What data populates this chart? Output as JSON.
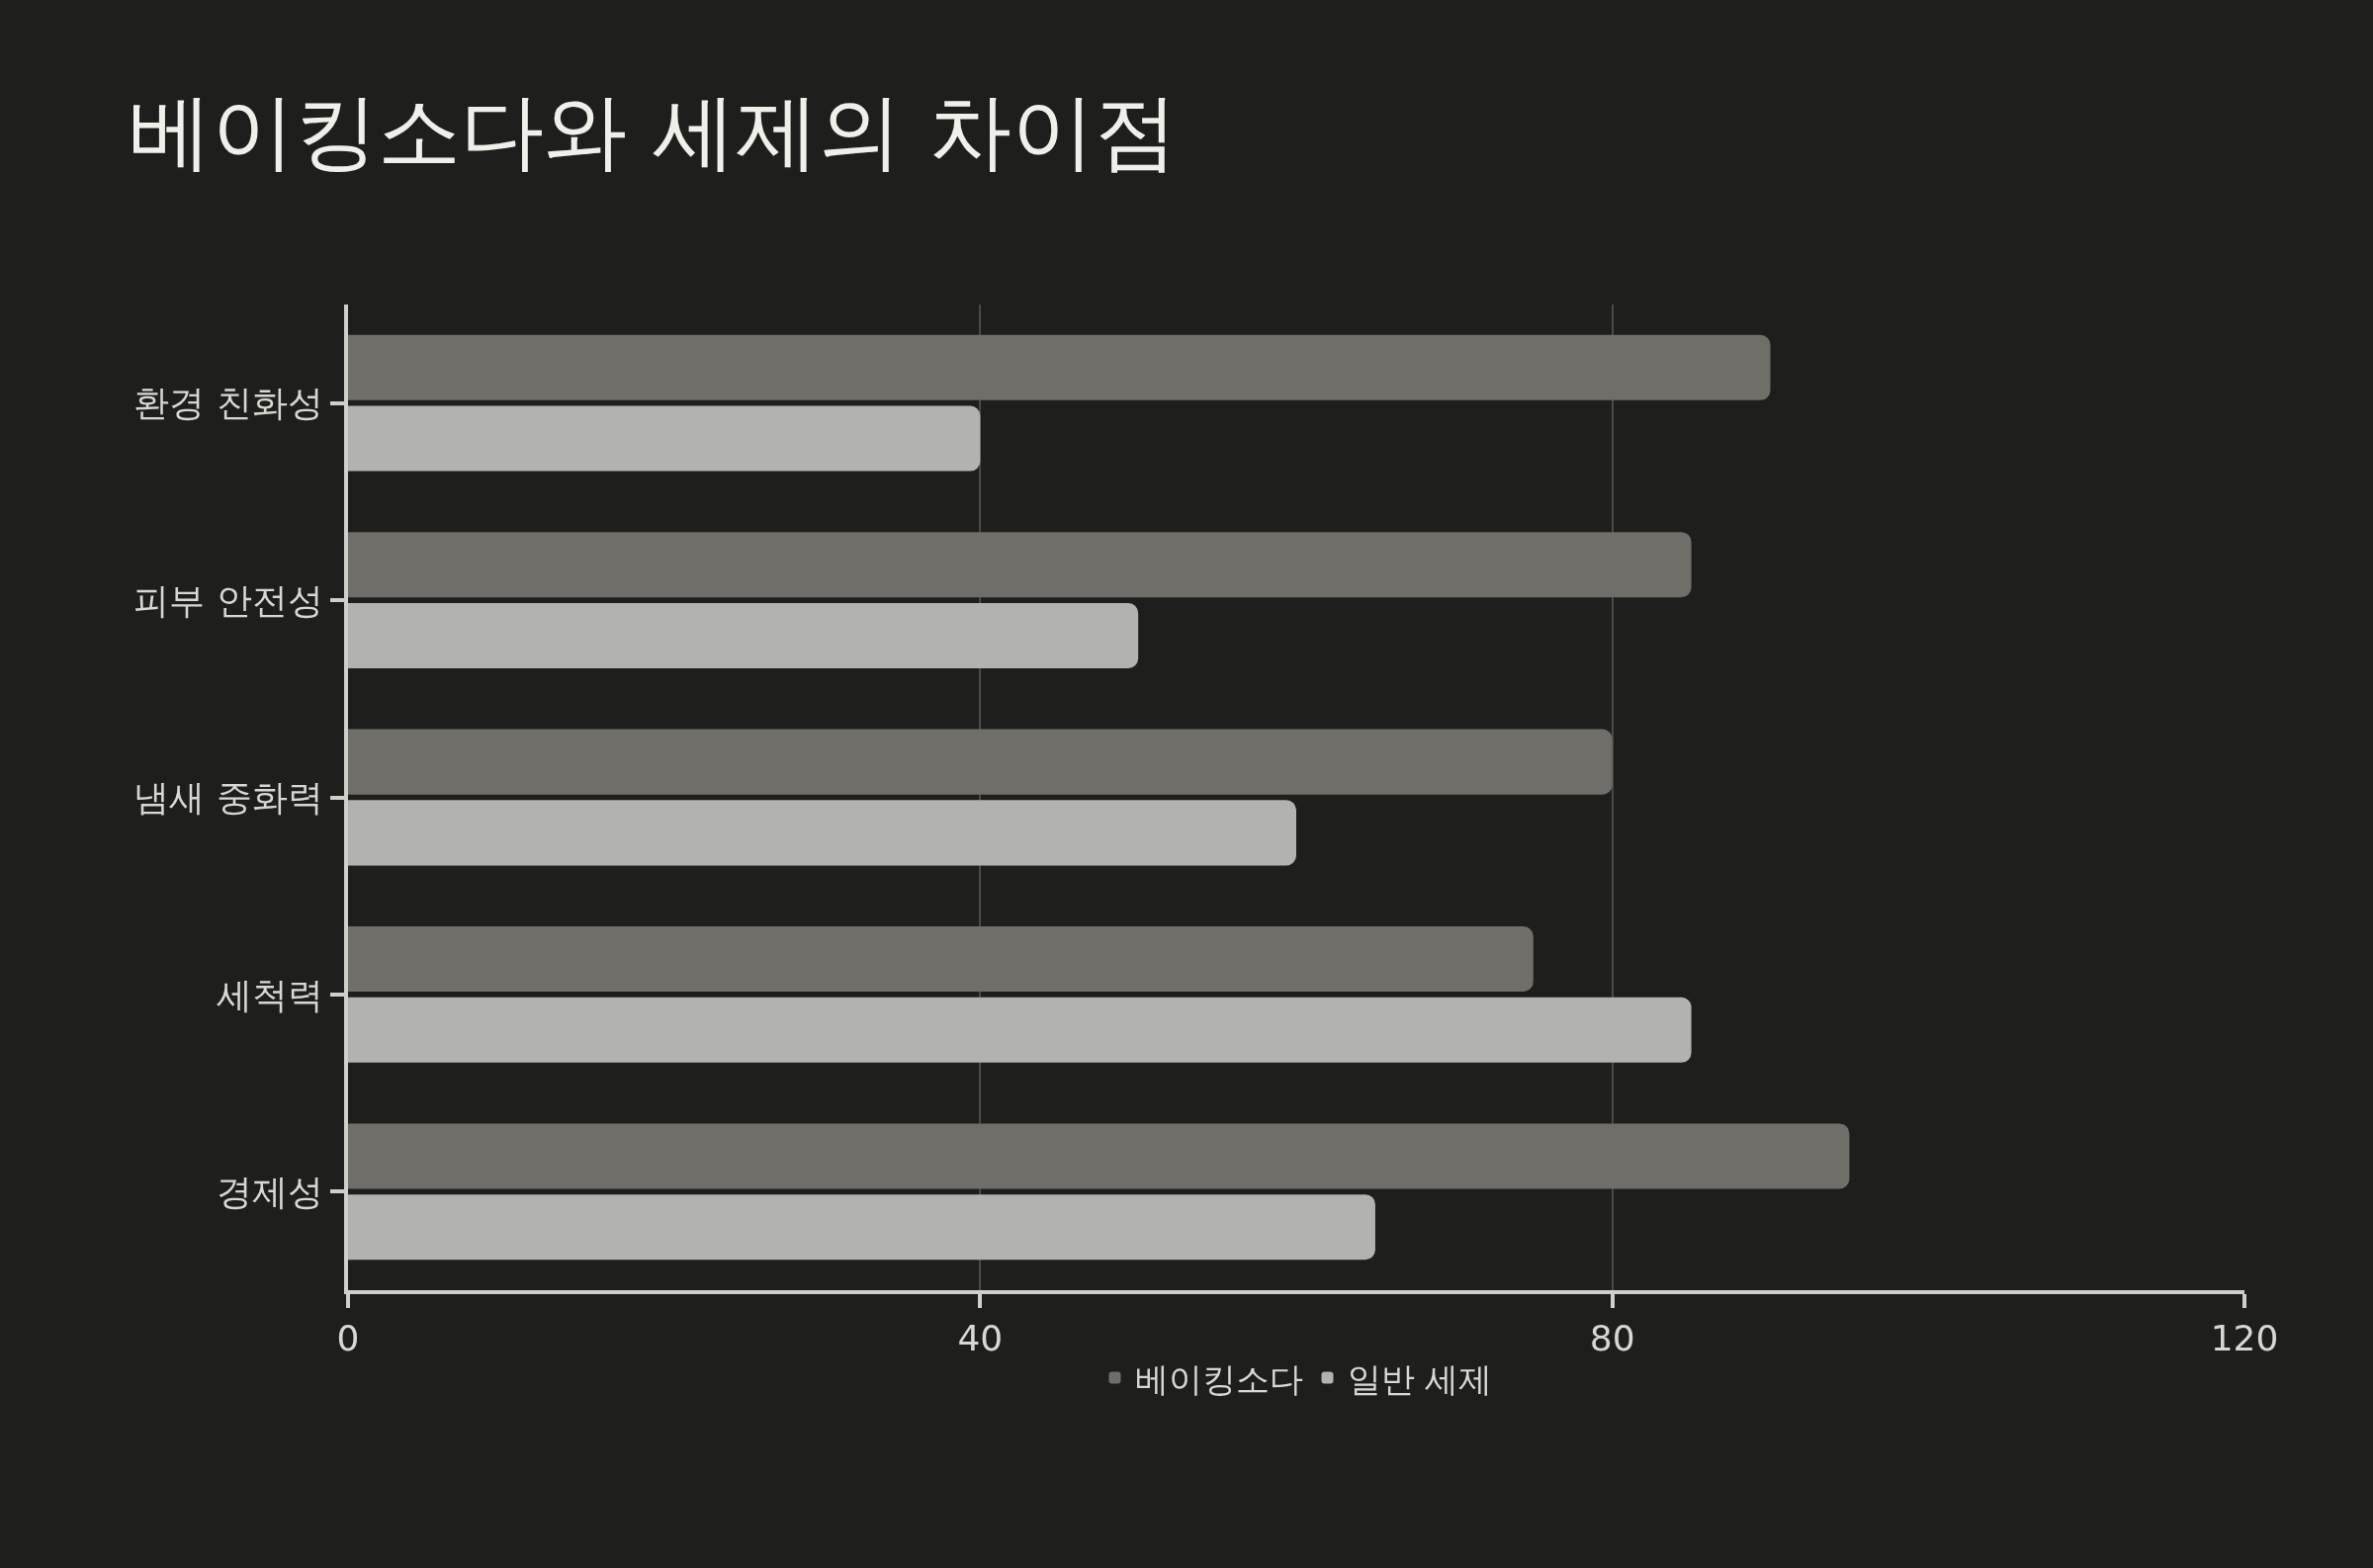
{
  "chart_data": {
    "type": "bar",
    "orientation": "horizontal",
    "title": "베이킹소다와 세제의 차이점",
    "categories": [
      "환경 친화성",
      "피부 안전성",
      "냄새 중화력",
      "세척력",
      "경제성"
    ],
    "series": [
      {
        "name": "베이킹소다",
        "color": "#6f6e69",
        "values": [
          90,
          85,
          80,
          75,
          95
        ]
      },
      {
        "name": "일반 세제",
        "color": "#b2b2ae",
        "values": [
          40,
          50,
          60,
          85,
          65
        ]
      }
    ],
    "xlim": [
      0,
      120
    ],
    "xticks": [
      0,
      40,
      80,
      120
    ],
    "grid": "x",
    "legend": "bottom"
  }
}
